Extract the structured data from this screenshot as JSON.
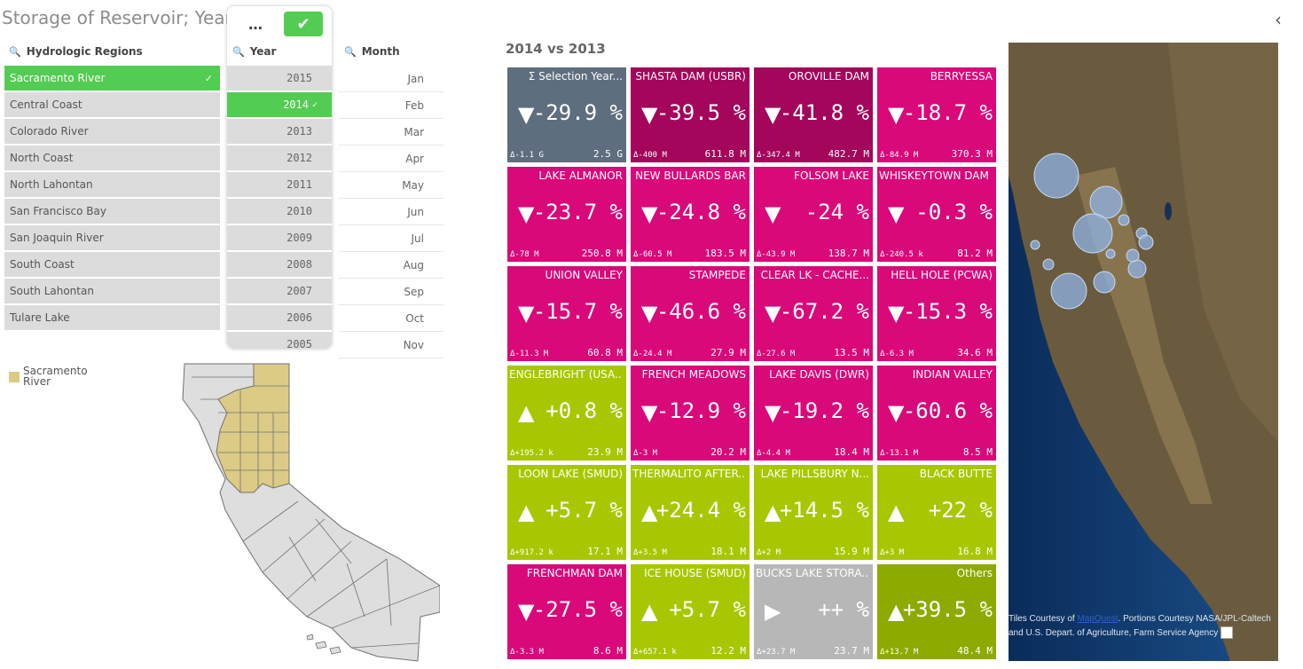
{
  "header": {
    "title": "Storage of Reservoir; Year-"
  },
  "filters": {
    "regions": {
      "header": "Hydrologic Regions",
      "items": [
        {
          "label": "Sacramento River",
          "selected": true
        },
        {
          "label": "Central Coast",
          "selected": false
        },
        {
          "label": "Colorado River",
          "selected": false
        },
        {
          "label": "North Coast",
          "selected": false
        },
        {
          "label": "North Lahontan",
          "selected": false
        },
        {
          "label": "San Francisco Bay",
          "selected": false
        },
        {
          "label": "San Joaquin River",
          "selected": false
        },
        {
          "label": "South Coast",
          "selected": false
        },
        {
          "label": "South Lahontan",
          "selected": false
        },
        {
          "label": "Tulare Lake",
          "selected": false
        }
      ]
    },
    "year": {
      "header": "Year",
      "more_label": "…",
      "confirm_icon": "check-icon",
      "items": [
        {
          "label": "2015",
          "selected": false
        },
        {
          "label": "2014",
          "selected": true
        },
        {
          "label": "2013",
          "selected": false
        },
        {
          "label": "2012",
          "selected": false
        },
        {
          "label": "2011",
          "selected": false
        },
        {
          "label": "2010",
          "selected": false
        },
        {
          "label": "2009",
          "selected": false
        },
        {
          "label": "2008",
          "selected": false
        },
        {
          "label": "2007",
          "selected": false
        },
        {
          "label": "2006",
          "selected": false
        },
        {
          "label": "2005",
          "selected": false
        }
      ]
    },
    "month": {
      "header": "Month",
      "items": [
        "Jan",
        "Feb",
        "Mar",
        "Apr",
        "May",
        "Jun",
        "Jul",
        "Aug",
        "Sep",
        "Oct",
        "Nov"
      ]
    }
  },
  "map_legend": {
    "label": "Sacramento River",
    "color": "#dccb85"
  },
  "kpi": {
    "subtitle": "2014 vs 2013",
    "colors": {
      "pink": "#d9097a",
      "darkpink": "#a3065a",
      "green": "#a8c700",
      "darkgreen": "#8caa00",
      "gray": "#5e6e7e",
      "lightgray": "#b7b7b7"
    },
    "tiles": [
      {
        "name": "Σ Selection Year...",
        "arrow": "▼",
        "pct": "-29.9 %",
        "delta": "Δ-1.1 G",
        "value": "2.5 G",
        "color": "gray"
      },
      {
        "name": "SHASTA DAM (USBR)",
        "arrow": "▼",
        "pct": "-39.5 %",
        "delta": "Δ-400 M",
        "value": "611.8 M",
        "color": "darkpink"
      },
      {
        "name": "OROVILLE DAM",
        "arrow": "▼",
        "pct": "-41.8 %",
        "delta": "Δ-347.4 M",
        "value": "482.7 M",
        "color": "darkpink"
      },
      {
        "name": "BERRYESSA",
        "arrow": "▼",
        "pct": "-18.7 %",
        "delta": "Δ-84.9 M",
        "value": "370.3 M",
        "color": "pink"
      },
      {
        "name": "LAKE ALMANOR",
        "arrow": "▼",
        "pct": "-23.7 %",
        "delta": "Δ-78 M",
        "value": "250.8 M",
        "color": "pink"
      },
      {
        "name": "NEW BULLARDS BAR",
        "arrow": "▼",
        "pct": "-24.8 %",
        "delta": "Δ-60.5 M",
        "value": "183.5 M",
        "color": "pink"
      },
      {
        "name": "FOLSOM LAKE",
        "arrow": "▼",
        "pct": "-24 %",
        "delta": "Δ-43.9 M",
        "value": "138.7 M",
        "color": "pink"
      },
      {
        "name": "WHISKEYTOWN DAM ...",
        "arrow": "▼",
        "pct": "-0.3 %",
        "delta": "Δ-240.5 k",
        "value": "81.2 M",
        "color": "pink"
      },
      {
        "name": "UNION VALLEY",
        "arrow": "▼",
        "pct": "-15.7 %",
        "delta": "Δ-11.3 M",
        "value": "60.8 M",
        "color": "pink"
      },
      {
        "name": "STAMPEDE",
        "arrow": "▼",
        "pct": "-46.6 %",
        "delta": "Δ-24.4 M",
        "value": "27.9 M",
        "color": "pink"
      },
      {
        "name": "CLEAR LK - CACHE...",
        "arrow": "▼",
        "pct": "-67.2 %",
        "delta": "Δ-27.6 M",
        "value": "13.5 M",
        "color": "pink"
      },
      {
        "name": "HELL HOLE (PCWA)",
        "arrow": "▼",
        "pct": "-15.3 %",
        "delta": "Δ-6.3 M",
        "value": "34.6 M",
        "color": "pink"
      },
      {
        "name": "ENGLEBRIGHT (USA...",
        "arrow": "▲",
        "pct": "+0.8 %",
        "delta": "Δ+195.2 k",
        "value": "23.9 M",
        "color": "green"
      },
      {
        "name": "FRENCH MEADOWS",
        "arrow": "▼",
        "pct": "-12.9 %",
        "delta": "Δ-3 M",
        "value": "20.2 M",
        "color": "pink"
      },
      {
        "name": "LAKE DAVIS (DWR)",
        "arrow": "▼",
        "pct": "-19.2 %",
        "delta": "Δ-4.4 M",
        "value": "18.4 M",
        "color": "pink"
      },
      {
        "name": "INDIAN VALLEY",
        "arrow": "▼",
        "pct": "-60.6 %",
        "delta": "Δ-13.1 M",
        "value": "8.5 M",
        "color": "pink"
      },
      {
        "name": "LOON LAKE (SMUD)",
        "arrow": "▲",
        "pct": "+5.7 %",
        "delta": "Δ+917.2 k",
        "value": "17.1 M",
        "color": "green"
      },
      {
        "name": "THERMALITO AFTER...",
        "arrow": "▲",
        "pct": "+24.4 %",
        "delta": "Δ+3.5 M",
        "value": "18.1 M",
        "color": "green"
      },
      {
        "name": "LAKE PILLSBURY N...",
        "arrow": "▲",
        "pct": "+14.5 %",
        "delta": "Δ+2 M",
        "value": "15.9 M",
        "color": "green"
      },
      {
        "name": "BLACK BUTTE",
        "arrow": "▲",
        "pct": "+22 %",
        "delta": "Δ+3 M",
        "value": "16.8 M",
        "color": "green"
      },
      {
        "name": "FRENCHMAN DAM",
        "arrow": "▼",
        "pct": "-27.5 %",
        "delta": "Δ-3.3 M",
        "value": "8.6 M",
        "color": "pink"
      },
      {
        "name": "ICE HOUSE (SMUD)",
        "arrow": "▲",
        "pct": "+5.7 %",
        "delta": "Δ+657.1 k",
        "value": "12.2 M",
        "color": "green"
      },
      {
        "name": "BUCKS LAKE STORA...",
        "arrow": "▶",
        "pct": "++ %",
        "delta": "Δ+23.7 M",
        "value": "23.7 M",
        "color": "lightgray"
      },
      {
        "name": "Others",
        "arrow": "▲",
        "pct": "+39.5 %",
        "delta": "Δ+13.7 M",
        "value": "48.4 M",
        "color": "darkgreen"
      }
    ]
  },
  "satellite": {
    "attribution_prefix": "Tiles Courtesy of",
    "attribution_link": "MapQuest",
    "attribution_rest": ". Portions Courtesy NASA/JPL-Caltech and U.S. Depart. of Agriculture, Farm Service Agency"
  }
}
